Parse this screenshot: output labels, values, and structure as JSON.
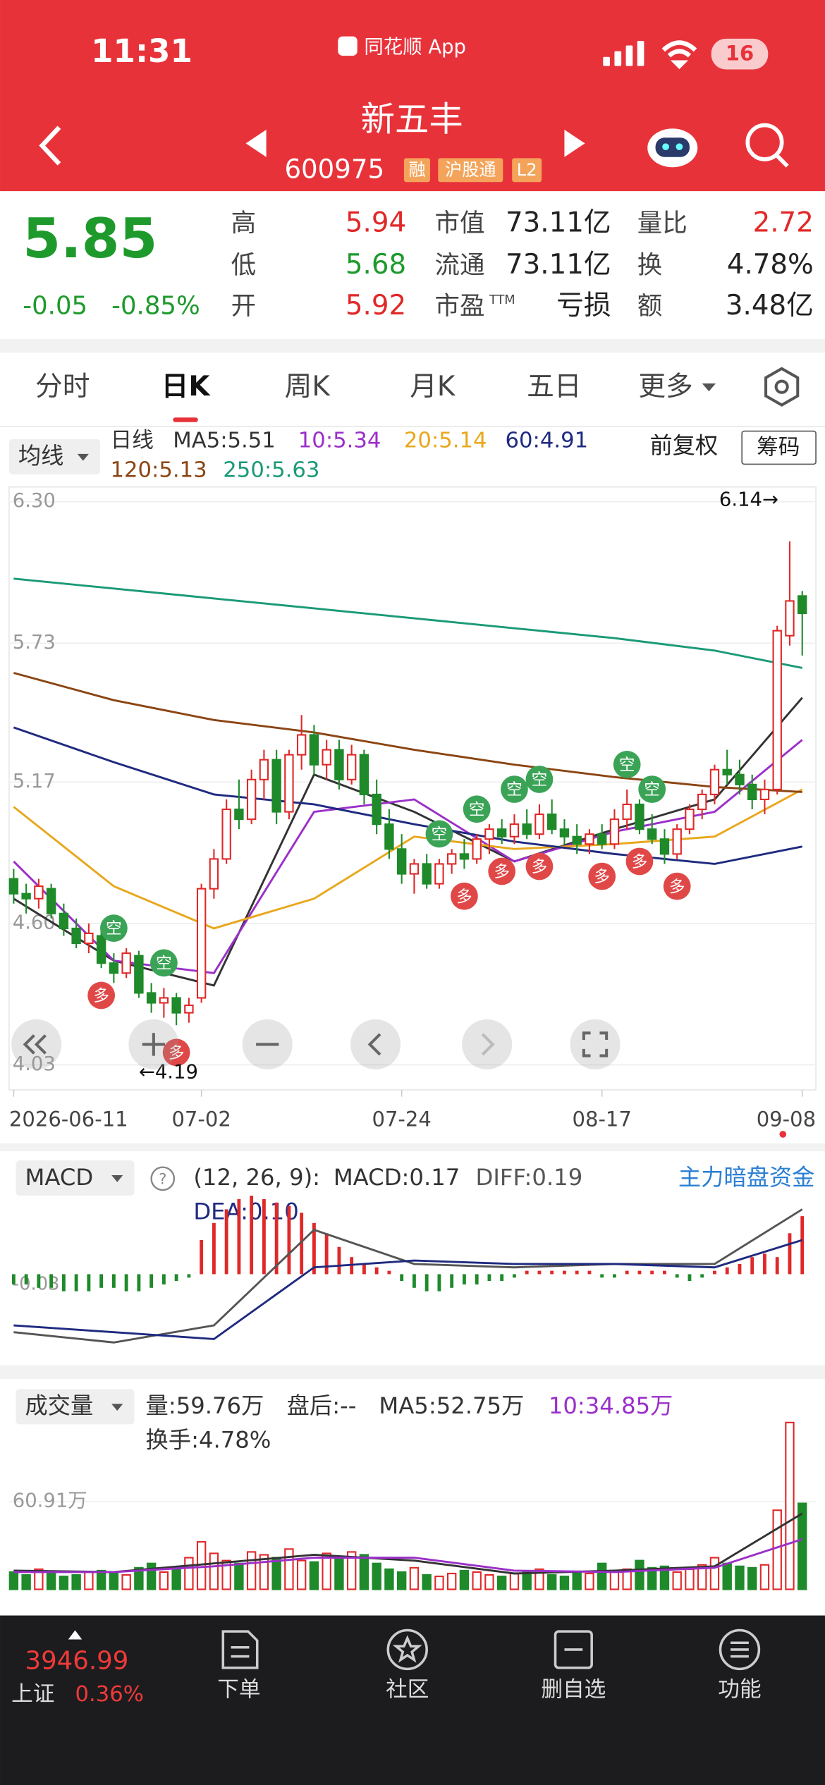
{
  "status_bar": {
    "time": "11:31",
    "app": "同花顺 App",
    "battery": "16"
  },
  "header": {
    "name": "新五丰",
    "code": "600975",
    "tags": [
      "融",
      "沪股通",
      "L2"
    ]
  },
  "quote": {
    "price": "5.85",
    "change": "-0.05",
    "change_pct": "-0.85%",
    "stats": [
      {
        "label": "高",
        "value": "5.94",
        "color": "#e02828"
      },
      {
        "label": "低",
        "value": "5.68",
        "color": "#1e9a2c"
      },
      {
        "label": "开",
        "value": "5.92",
        "color": "#e02828"
      },
      {
        "label": "市值",
        "value": "73.11亿",
        "color": "#222222"
      },
      {
        "label": "流通",
        "value": "73.11亿",
        "color": "#222222"
      },
      {
        "label": "市盈",
        "sup": "TTM",
        "value": "亏损",
        "color": "#222222"
      },
      {
        "label": "量比",
        "value": "2.72",
        "color": "#e02828"
      },
      {
        "label": "换",
        "value": "4.78%",
        "color": "#222222"
      },
      {
        "label": "额",
        "value": "3.48亿",
        "color": "#222222"
      }
    ]
  },
  "tabs": [
    "分时",
    "日K",
    "周K",
    "月K",
    "五日",
    "更多"
  ],
  "active_tab": 1,
  "indicator_bar": {
    "selector": "均线",
    "period": "日线",
    "adjust": "前复权",
    "chips": "筹码"
  },
  "kline": {
    "ylim": [
      4.03,
      6.3
    ],
    "yticks": [
      {
        "value": 6.3,
        "label": "6.30"
      },
      5.73,
      5.17,
      {
        "value": 4.6,
        "label": "4.60"
      },
      4.03
    ],
    "up_color": "#e02828",
    "down_color": "#1e8a2a",
    "dates": [
      "2026-06-11",
      null,
      null,
      null,
      null,
      null,
      null,
      null,
      null,
      null,
      null,
      null,
      null,
      null,
      null,
      "07-02",
      null,
      null,
      null,
      null,
      null,
      null,
      null,
      null,
      null,
      null,
      null,
      null,
      null,
      null,
      null,
      "07-24",
      null,
      null,
      null,
      null,
      null,
      null,
      null,
      null,
      null,
      null,
      null,
      null,
      null,
      null,
      null,
      "08-17",
      null,
      null,
      null,
      null,
      null,
      null,
      null,
      null,
      null,
      null,
      null,
      null,
      null,
      null,
      null,
      "09-08"
    ],
    "candles": [
      [
        4.78,
        4.82,
        4.68,
        4.72
      ],
      [
        4.72,
        4.76,
        4.64,
        4.7
      ],
      [
        4.7,
        4.78,
        4.66,
        4.75
      ],
      [
        4.74,
        4.76,
        4.62,
        4.64
      ],
      [
        4.64,
        4.68,
        4.55,
        4.58
      ],
      [
        4.58,
        4.62,
        4.5,
        4.52
      ],
      [
        4.52,
        4.6,
        4.48,
        4.56
      ],
      [
        4.55,
        4.57,
        4.42,
        4.44
      ],
      [
        4.44,
        4.48,
        4.36,
        4.4
      ],
      [
        4.4,
        4.5,
        4.38,
        4.48
      ],
      [
        4.47,
        4.49,
        4.3,
        4.32
      ],
      [
        4.32,
        4.36,
        4.24,
        4.28
      ],
      [
        4.28,
        4.34,
        4.22,
        4.3
      ],
      [
        4.3,
        4.32,
        4.19,
        4.24
      ],
      [
        4.24,
        4.3,
        4.2,
        4.27
      ],
      [
        4.3,
        4.76,
        4.28,
        4.74
      ],
      [
        4.74,
        4.9,
        4.7,
        4.86
      ],
      [
        4.86,
        5.1,
        4.84,
        5.06
      ],
      [
        5.06,
        5.18,
        4.98,
        5.02
      ],
      [
        5.02,
        5.22,
        5.0,
        5.18
      ],
      [
        5.18,
        5.3,
        5.1,
        5.26
      ],
      [
        5.26,
        5.3,
        5.0,
        5.05
      ],
      [
        5.05,
        5.3,
        5.02,
        5.28
      ],
      [
        5.28,
        5.44,
        5.22,
        5.36
      ],
      [
        5.36,
        5.4,
        5.2,
        5.24
      ],
      [
        5.24,
        5.34,
        5.18,
        5.3
      ],
      [
        5.3,
        5.34,
        5.14,
        5.18
      ],
      [
        5.18,
        5.32,
        5.16,
        5.28
      ],
      [
        5.28,
        5.3,
        5.08,
        5.12
      ],
      [
        5.12,
        5.18,
        4.96,
        5.0
      ],
      [
        5.0,
        5.06,
        4.86,
        4.9
      ],
      [
        4.9,
        4.96,
        4.76,
        4.8
      ],
      [
        4.8,
        4.86,
        4.72,
        4.84
      ],
      [
        4.84,
        4.88,
        4.74,
        4.76
      ],
      [
        4.76,
        4.86,
        4.74,
        4.84
      ],
      [
        4.84,
        4.9,
        4.8,
        4.88
      ],
      [
        4.88,
        4.94,
        4.82,
        4.86
      ],
      [
        4.86,
        4.96,
        4.84,
        4.94
      ],
      [
        4.94,
        5.0,
        4.88,
        4.98
      ],
      [
        4.98,
        5.02,
        4.92,
        4.95
      ],
      [
        4.95,
        5.04,
        4.92,
        5.0
      ],
      [
        5.0,
        5.06,
        4.94,
        4.96
      ],
      [
        4.96,
        5.08,
        4.94,
        5.04
      ],
      [
        5.04,
        5.1,
        4.96,
        4.98
      ],
      [
        4.98,
        5.02,
        4.92,
        4.95
      ],
      [
        4.95,
        5.0,
        4.88,
        4.92
      ],
      [
        4.92,
        4.98,
        4.88,
        4.96
      ],
      [
        4.96,
        5.0,
        4.9,
        4.92
      ],
      [
        4.92,
        5.06,
        4.9,
        5.02
      ],
      [
        5.02,
        5.14,
        4.98,
        5.08
      ],
      [
        5.08,
        5.1,
        4.96,
        4.98
      ],
      [
        4.98,
        5.04,
        4.92,
        4.94
      ],
      [
        4.94,
        4.98,
        4.84,
        4.88
      ],
      [
        4.88,
        5.0,
        4.86,
        4.98
      ],
      [
        4.98,
        5.08,
        4.96,
        5.06
      ],
      [
        5.06,
        5.14,
        5.02,
        5.12
      ],
      [
        5.12,
        5.24,
        5.08,
        5.22
      ],
      [
        5.22,
        5.3,
        5.16,
        5.2
      ],
      [
        5.2,
        5.26,
        5.12,
        5.16
      ],
      [
        5.16,
        5.2,
        5.06,
        5.1
      ],
      [
        5.1,
        5.18,
        5.04,
        5.14
      ],
      [
        5.14,
        5.8,
        5.12,
        5.78
      ],
      [
        5.76,
        6.14,
        5.72,
        5.9
      ],
      [
        5.92,
        5.94,
        5.68,
        5.85
      ]
    ],
    "line_index": [
      0,
      8,
      16,
      24,
      32,
      40,
      48,
      56,
      63
    ],
    "ma": [
      {
        "name": "MA5:5.51",
        "color": "#333333",
        "values": [
          4.7,
          4.45,
          4.35,
          5.2,
          5.05,
          4.85,
          4.98,
          5.1,
          5.51
        ]
      },
      {
        "name": "10:5.34",
        "color": "#9b2fc9",
        "values": [
          4.85,
          4.45,
          4.4,
          5.05,
          5.1,
          4.85,
          4.97,
          5.05,
          5.34
        ]
      },
      {
        "name": "20:5.14",
        "color": "#e8a71c",
        "values": [
          5.07,
          4.75,
          4.58,
          4.7,
          4.95,
          4.9,
          4.92,
          4.95,
          5.14
        ]
      },
      {
        "name": "60:4.91",
        "color": "#1f2a80",
        "values": [
          5.39,
          5.25,
          5.12,
          5.08,
          5.0,
          4.93,
          4.88,
          4.84,
          4.91
        ]
      },
      {
        "name": "120:5.13",
        "color": "#8b4513",
        "values": [
          5.61,
          5.5,
          5.42,
          5.37,
          5.3,
          5.24,
          5.19,
          5.15,
          5.13
        ]
      },
      {
        "name": "250:5.63",
        "color": "#1a9a78",
        "values": [
          5.99,
          5.95,
          5.91,
          5.87,
          5.83,
          5.79,
          5.75,
          5.7,
          5.63
        ]
      }
    ],
    "signals": [
      {
        "index": 8,
        "label": "空"
      },
      {
        "index": 7,
        "label": "多"
      },
      {
        "index": 12,
        "label": "空"
      },
      {
        "index": 13,
        "label": "多"
      },
      {
        "index": 34,
        "label": "空"
      },
      {
        "index": 37,
        "label": "空"
      },
      {
        "index": 40,
        "label": "空"
      },
      {
        "index": 42,
        "label": "空"
      },
      {
        "index": 36,
        "label": "多"
      },
      {
        "index": 39,
        "label": "多"
      },
      {
        "index": 42,
        "label": "多"
      },
      {
        "index": 49,
        "label": "空"
      },
      {
        "index": 51,
        "label": "空"
      },
      {
        "index": 47,
        "label": "多"
      },
      {
        "index": 50,
        "label": "多"
      },
      {
        "index": 53,
        "label": "多"
      }
    ],
    "annotations": [
      "6.14→",
      "←4.19"
    ]
  },
  "macd": {
    "selector": "MACD",
    "params": "(12, 26, 9):",
    "readout": "MACD:0.17",
    "link": "主力暗盘资金",
    "ylim": [
      -0.25,
      0.25
    ],
    "yticks": [
      -0.03
    ],
    "bars": [
      -0.03,
      -0.03,
      -0.04,
      -0.04,
      -0.05,
      -0.05,
      -0.05,
      -0.04,
      -0.04,
      -0.05,
      -0.05,
      -0.04,
      -0.03,
      -0.02,
      -0.01,
      0.1,
      0.15,
      0.19,
      0.22,
      0.23,
      0.22,
      0.21,
      0.2,
      0.18,
      0.15,
      0.12,
      0.08,
      0.05,
      0.03,
      0.02,
      0.01,
      -0.02,
      -0.04,
      -0.05,
      -0.05,
      -0.04,
      -0.03,
      -0.03,
      -0.02,
      -0.02,
      -0.01,
      0.01,
      0.01,
      0.01,
      0.01,
      0.01,
      0.01,
      -0.01,
      -0.01,
      0.01,
      0.01,
      0.01,
      0.01,
      -0.01,
      -0.02,
      -0.01,
      0.01,
      0.02,
      0.03,
      0.05,
      0.06,
      0.05,
      0.12,
      0.17
    ],
    "line_index": [
      0,
      8,
      16,
      24,
      32,
      40,
      48,
      56,
      63
    ],
    "lines": [
      {
        "name": "DIFF:0.19",
        "color": "#555555",
        "values": [
          -0.17,
          -0.2,
          -0.15,
          0.13,
          0.03,
          0.02,
          0.03,
          0.03,
          0.19
        ]
      },
      {
        "name": "DEA:0.10",
        "color": "#1f2a80",
        "values": [
          -0.15,
          -0.17,
          -0.19,
          0.02,
          0.04,
          0.03,
          0.03,
          0.02,
          0.1
        ]
      }
    ]
  },
  "volume": {
    "selector": "成交量",
    "readouts": [
      "量:59.76万",
      "盘后:--"
    ],
    "turnover": "换手:4.78%",
    "ylim": [
      0,
      125
    ],
    "yticks": [
      {
        "value": 60.91,
        "label": "60.91万"
      }
    ],
    "values": [
      12,
      10,
      14,
      11,
      9,
      10,
      12,
      13,
      11,
      10,
      15,
      18,
      12,
      14,
      22,
      33,
      25,
      20,
      18,
      26,
      24,
      22,
      28,
      20,
      19,
      25,
      22,
      26,
      24,
      18,
      14,
      12,
      15,
      10,
      9,
      11,
      13,
      12,
      10,
      9,
      11,
      12,
      14,
      10,
      9,
      12,
      11,
      18,
      13,
      14,
      20,
      15,
      16,
      12,
      14,
      17,
      22,
      18,
      16,
      15,
      17,
      55,
      116,
      59.76
    ],
    "line_index": [
      0,
      8,
      16,
      24,
      32,
      40,
      48,
      56,
      63
    ],
    "ma": [
      {
        "name": "MA5:52.75万",
        "color": "#333333",
        "values": [
          13,
          12,
          18,
          24,
          20,
          11,
          13,
          16,
          52.75
        ]
      },
      {
        "name": "10:34.85万",
        "color": "#9b2fc9",
        "values": [
          12,
          12,
          16,
          22,
          22,
          13,
          12,
          15,
          34.85
        ]
      }
    ]
  },
  "bottom_bar": {
    "index_value": "3946.99",
    "index_name": "上证",
    "index_pct": "0.36%",
    "items": [
      "下单",
      "社区",
      "删自选",
      "功能"
    ]
  }
}
